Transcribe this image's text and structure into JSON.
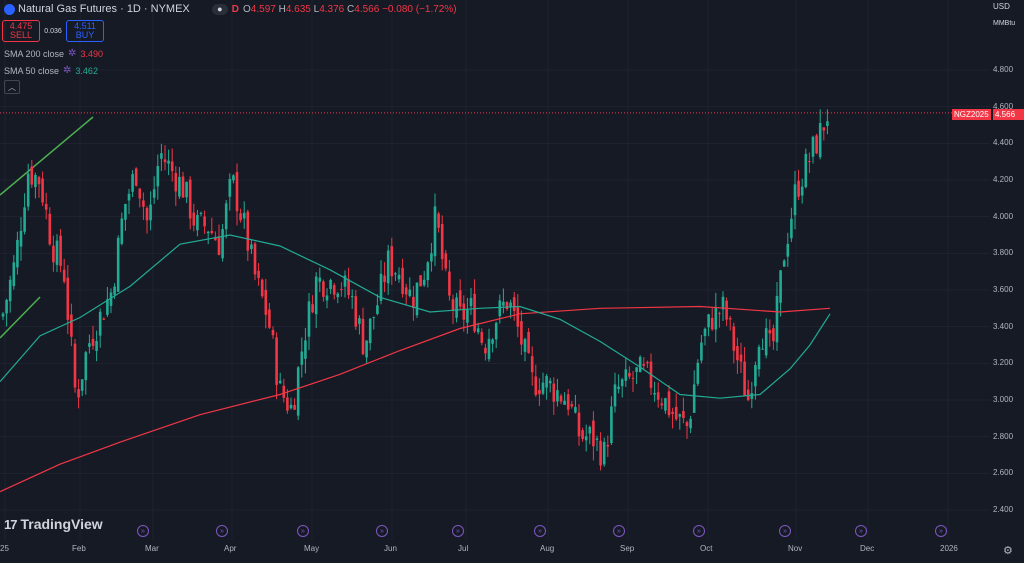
{
  "header": {
    "symbol_title": "Natural Gas Futures · 1D · NYMEX",
    "market_status_icon": "dot",
    "indicator_letter": "D",
    "ohlc": {
      "o_label": "O",
      "o": "4.597",
      "h_label": "H",
      "h": "4.635",
      "l_label": "L",
      "l": "4.376",
      "c_label": "C",
      "c": "4.566",
      "change": "−0.080 (−1.72%)"
    }
  },
  "trade": {
    "sell_price": "4.475",
    "sell_label": "SELL",
    "spread": "0.036",
    "buy_price": "4.511",
    "buy_label": "BUY"
  },
  "indicators": [
    {
      "label": "SMA 200 close",
      "value": "3.490",
      "color": "#f23645"
    },
    {
      "label": "SMA 50 close",
      "value": "3.462",
      "color": "#22ab94"
    }
  ],
  "price_axis": {
    "currency": "USD",
    "unit": "MMBtu",
    "ticks": [
      "4.800",
      "4.600",
      "4.400",
      "4.200",
      "4.000",
      "3.800",
      "3.600",
      "3.400",
      "3.200",
      "3.000",
      "2.800",
      "2.600",
      "2.400"
    ],
    "last_symbol": "NGZ2025",
    "last_price": "4.566"
  },
  "time_axis": {
    "labels": [
      "25",
      "Feb",
      "Mar",
      "Apr",
      "May",
      "Jun",
      "Jul",
      "Aug",
      "Sep",
      "Oct",
      "Nov",
      "Dec",
      "2026"
    ]
  },
  "branding": {
    "logo_mark": "17",
    "logo_text": "TradingView"
  },
  "colors": {
    "up": "#22ab94",
    "down": "#f23645",
    "sma200": "#f23645",
    "sma50": "#22ab94",
    "background": "#161a25",
    "grid": "#1f2330",
    "event": "#7e57c2",
    "trendline": "#4caf50"
  },
  "chart_data": {
    "type": "candlestick",
    "y_range": [
      2.3,
      4.9
    ],
    "sma200_points": [
      [
        0,
        2.5
      ],
      [
        60,
        2.65
      ],
      [
        120,
        2.77
      ],
      [
        200,
        2.92
      ],
      [
        280,
        3.03
      ],
      [
        340,
        3.14
      ],
      [
        400,
        3.27
      ],
      [
        460,
        3.39
      ],
      [
        520,
        3.47
      ],
      [
        600,
        3.5
      ],
      [
        700,
        3.51
      ],
      [
        780,
        3.48
      ],
      [
        830,
        3.5
      ]
    ],
    "sma50_points": [
      [
        0,
        3.1
      ],
      [
        40,
        3.35
      ],
      [
        80,
        3.45
      ],
      [
        130,
        3.62
      ],
      [
        180,
        3.85
      ],
      [
        230,
        3.9
      ],
      [
        280,
        3.84
      ],
      [
        330,
        3.71
      ],
      [
        380,
        3.56
      ],
      [
        430,
        3.48
      ],
      [
        480,
        3.5
      ],
      [
        520,
        3.51
      ],
      [
        560,
        3.44
      ],
      [
        600,
        3.32
      ],
      [
        640,
        3.18
      ],
      [
        680,
        3.03
      ],
      [
        720,
        3.01
      ],
      [
        760,
        3.03
      ],
      [
        790,
        3.17
      ],
      [
        810,
        3.3
      ],
      [
        830,
        3.47
      ]
    ],
    "close_path": [
      [
        2,
        3.45
      ],
      [
        15,
        3.75
      ],
      [
        28,
        4.25
      ],
      [
        40,
        4.2
      ],
      [
        52,
        3.85
      ],
      [
        64,
        3.7
      ],
      [
        76,
        3.0
      ],
      [
        88,
        3.3
      ],
      [
        100,
        3.45
      ],
      [
        112,
        3.6
      ],
      [
        124,
        4.05
      ],
      [
        136,
        4.25
      ],
      [
        148,
        3.95
      ],
      [
        160,
        4.35
      ],
      [
        172,
        4.25
      ],
      [
        184,
        4.15
      ],
      [
        196,
        3.95
      ],
      [
        208,
        3.95
      ],
      [
        220,
        3.85
      ],
      [
        232,
        4.2
      ],
      [
        244,
        3.95
      ],
      [
        256,
        3.65
      ],
      [
        268,
        3.45
      ],
      [
        280,
        3.05
      ],
      [
        292,
        2.95
      ],
      [
        304,
        3.35
      ],
      [
        316,
        3.65
      ],
      [
        328,
        3.65
      ],
      [
        340,
        3.65
      ],
      [
        352,
        3.55
      ],
      [
        364,
        3.3
      ],
      [
        376,
        3.5
      ],
      [
        388,
        3.75
      ],
      [
        400,
        3.7
      ],
      [
        412,
        3.55
      ],
      [
        424,
        3.7
      ],
      [
        436,
        4.0
      ],
      [
        448,
        3.55
      ],
      [
        460,
        3.45
      ],
      [
        472,
        3.5
      ],
      [
        484,
        3.3
      ],
      [
        496,
        3.45
      ],
      [
        508,
        3.55
      ],
      [
        520,
        3.35
      ],
      [
        532,
        3.1
      ],
      [
        544,
        3.1
      ],
      [
        556,
        3.05
      ],
      [
        568,
        3.0
      ],
      [
        580,
        2.8
      ],
      [
        592,
        2.8
      ],
      [
        604,
        2.7
      ],
      [
        616,
        3.05
      ],
      [
        628,
        3.1
      ],
      [
        640,
        3.15
      ],
      [
        652,
        3.1
      ],
      [
        664,
        3.0
      ],
      [
        676,
        2.9
      ],
      [
        688,
        2.85
      ],
      [
        700,
        3.3
      ],
      [
        712,
        3.45
      ],
      [
        724,
        3.5
      ],
      [
        736,
        3.25
      ],
      [
        748,
        3.0
      ],
      [
        760,
        3.4
      ],
      [
        772,
        3.25
      ],
      [
        784,
        3.8
      ],
      [
        796,
        4.15
      ],
      [
        808,
        4.3
      ],
      [
        820,
        4.45
      ],
      [
        828,
        4.57
      ]
    ]
  }
}
